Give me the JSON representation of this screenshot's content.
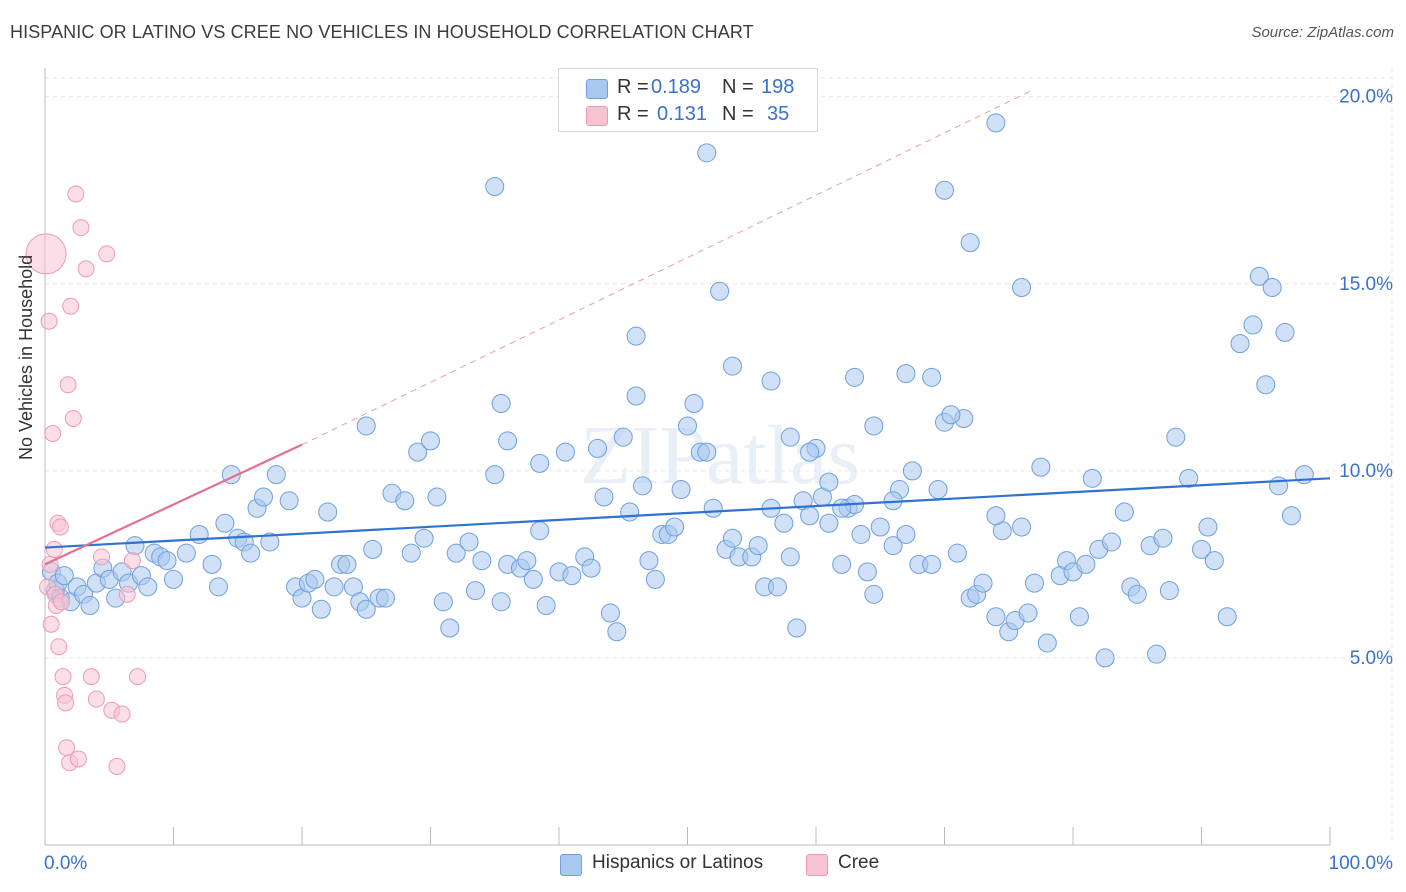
{
  "header": {
    "title": "HISPANIC OR LATINO VS CREE NO VEHICLES IN HOUSEHOLD CORRELATION CHART",
    "source": "Source: ZipAtlas.com"
  },
  "legend_top": [
    {
      "r_label": "R =",
      "r_value": "0.189",
      "n_label": "N =",
      "n_value": "198"
    },
    {
      "r_label": "R =",
      "r_value": "0.131",
      "n_label": "N =",
      "n_value": "35"
    }
  ],
  "legend_bottom": [
    {
      "label": "Hispanics or Latinos"
    },
    {
      "label": "Cree"
    }
  ],
  "colors": {
    "blue_fill": "#a9c8f0",
    "blue_stroke": "#6f9fdc",
    "blue_line": "#2f72cf",
    "pink_fill": "#f7c3d3",
    "pink_stroke": "#ee9ab3",
    "pink_line": "#e2708f",
    "tick_label": "#3a72c9",
    "grid": "#e6e6e6"
  },
  "chart_data": {
    "type": "scatter",
    "title": "HISPANIC OR LATINO VS CREE NO VEHICLES IN HOUSEHOLD CORRELATION CHART",
    "xlabel": "",
    "ylabel": "No Vehicles in Household",
    "xlim": [
      0,
      100
    ],
    "ylim": [
      0,
      20.5
    ],
    "x_tick_labels": [
      {
        "value": 0,
        "label": "0.0%"
      },
      {
        "value": 100,
        "label": "100.0%"
      }
    ],
    "y_tick_labels": [
      {
        "value": 5,
        "label": "5.0%"
      },
      {
        "value": 10,
        "label": "10.0%"
      },
      {
        "value": 15,
        "label": "15.0%"
      },
      {
        "value": 20,
        "label": "20.0%"
      }
    ],
    "grid": true,
    "watermark": "ZIPatlas",
    "series": [
      {
        "name": "Hispanics or Latinos",
        "color": "#a9c8f0",
        "trend": {
          "x": [
            0,
            100
          ],
          "y": [
            7.95,
            9.8
          ]
        },
        "points": [
          [
            0.5,
            7.3
          ],
          [
            0.8,
            6.8
          ],
          [
            1.0,
            7.0
          ],
          [
            1.2,
            6.6
          ],
          [
            1.5,
            7.2
          ],
          [
            2.0,
            6.5
          ],
          [
            2.5,
            6.9
          ],
          [
            3.0,
            6.7
          ],
          [
            3.5,
            6.4
          ],
          [
            4.0,
            7.0
          ],
          [
            4.5,
            7.4
          ],
          [
            5.0,
            7.1
          ],
          [
            5.5,
            6.6
          ],
          [
            6.0,
            7.3
          ],
          [
            6.5,
            7.0
          ],
          [
            7.0,
            8.0
          ],
          [
            7.5,
            7.2
          ],
          [
            8.0,
            6.9
          ],
          [
            8.5,
            7.8
          ],
          [
            9.0,
            7.7
          ],
          [
            9.5,
            7.6
          ],
          [
            10.0,
            7.1
          ],
          [
            11.0,
            7.8
          ],
          [
            12.0,
            8.3
          ],
          [
            13.0,
            7.5
          ],
          [
            13.5,
            6.9
          ],
          [
            14.0,
            8.6
          ],
          [
            14.5,
            9.9
          ],
          [
            15.0,
            8.2
          ],
          [
            15.5,
            8.1
          ],
          [
            16.0,
            7.8
          ],
          [
            16.5,
            9.0
          ],
          [
            17.0,
            9.3
          ],
          [
            17.5,
            8.1
          ],
          [
            18.0,
            9.9
          ],
          [
            19.0,
            9.2
          ],
          [
            19.5,
            6.9
          ],
          [
            20.0,
            6.6
          ],
          [
            20.5,
            7.0
          ],
          [
            21.0,
            7.1
          ],
          [
            21.5,
            6.3
          ],
          [
            22.0,
            8.9
          ],
          [
            22.5,
            6.9
          ],
          [
            23.0,
            7.5
          ],
          [
            23.5,
            7.5
          ],
          [
            24.0,
            6.9
          ],
          [
            24.5,
            6.5
          ],
          [
            25.0,
            6.3
          ],
          [
            25.5,
            7.9
          ],
          [
            26.0,
            6.6
          ],
          [
            26.5,
            6.6
          ],
          [
            27.0,
            9.4
          ],
          [
            28.0,
            9.2
          ],
          [
            28.5,
            7.8
          ],
          [
            29.0,
            10.5
          ],
          [
            29.5,
            8.2
          ],
          [
            30.0,
            10.8
          ],
          [
            30.5,
            9.3
          ],
          [
            31.0,
            6.5
          ],
          [
            31.5,
            5.8
          ],
          [
            32.0,
            7.8
          ],
          [
            33.0,
            8.1
          ],
          [
            33.5,
            6.8
          ],
          [
            34.0,
            7.6
          ],
          [
            35.0,
            9.9
          ],
          [
            35.5,
            6.5
          ],
          [
            36.0,
            7.5
          ],
          [
            37.0,
            7.4
          ],
          [
            37.5,
            7.6
          ],
          [
            38.0,
            7.1
          ],
          [
            38.5,
            8.4
          ],
          [
            39.0,
            6.4
          ],
          [
            40.0,
            7.3
          ],
          [
            40.5,
            10.5
          ],
          [
            41.0,
            7.2
          ],
          [
            42.0,
            7.7
          ],
          [
            42.5,
            7.4
          ],
          [
            43.0,
            10.6
          ],
          [
            43.5,
            9.3
          ],
          [
            44.0,
            6.2
          ],
          [
            44.5,
            5.7
          ],
          [
            45.0,
            10.9
          ],
          [
            45.5,
            8.9
          ],
          [
            46.0,
            12.0
          ],
          [
            46.5,
            9.6
          ],
          [
            47.0,
            7.6
          ],
          [
            47.5,
            7.1
          ],
          [
            48.0,
            8.3
          ],
          [
            48.5,
            8.3
          ],
          [
            49.0,
            8.5
          ],
          [
            49.5,
            9.5
          ],
          [
            50.0,
            11.2
          ],
          [
            50.5,
            11.8
          ],
          [
            51.0,
            10.5
          ],
          [
            51.5,
            10.5
          ],
          [
            52.0,
            9.0
          ],
          [
            53.0,
            7.9
          ],
          [
            53.5,
            8.2
          ],
          [
            54.0,
            7.7
          ],
          [
            55.0,
            7.7
          ],
          [
            55.5,
            8.0
          ],
          [
            56.0,
            6.9
          ],
          [
            56.5,
            9.0
          ],
          [
            57.0,
            6.9
          ],
          [
            57.5,
            8.6
          ],
          [
            58.0,
            7.7
          ],
          [
            58.5,
            5.8
          ],
          [
            59.0,
            9.2
          ],
          [
            59.5,
            8.8
          ],
          [
            60.0,
            10.6
          ],
          [
            60.5,
            9.3
          ],
          [
            61.0,
            8.6
          ],
          [
            62.0,
            7.5
          ],
          [
            62.5,
            9.0
          ],
          [
            63.0,
            9.1
          ],
          [
            63.5,
            8.3
          ],
          [
            64.0,
            7.3
          ],
          [
            64.5,
            6.7
          ],
          [
            65.0,
            8.5
          ],
          [
            66.0,
            8.0
          ],
          [
            66.5,
            9.5
          ],
          [
            67.0,
            8.3
          ],
          [
            67.5,
            10.0
          ],
          [
            68.0,
            7.5
          ],
          [
            69.0,
            7.5
          ],
          [
            69.5,
            9.5
          ],
          [
            70.0,
            11.3
          ],
          [
            71.0,
            7.8
          ],
          [
            71.5,
            11.4
          ],
          [
            72.0,
            6.6
          ],
          [
            72.5,
            6.7
          ],
          [
            73.0,
            7.0
          ],
          [
            74.0,
            6.1
          ],
          [
            74.5,
            8.4
          ],
          [
            75.0,
            5.7
          ],
          [
            75.5,
            6.0
          ],
          [
            76.0,
            8.5
          ],
          [
            76.5,
            6.2
          ],
          [
            77.0,
            7.0
          ],
          [
            77.5,
            10.1
          ],
          [
            78.0,
            5.4
          ],
          [
            79.0,
            7.2
          ],
          [
            79.5,
            7.6
          ],
          [
            80.0,
            7.3
          ],
          [
            80.5,
            6.1
          ],
          [
            81.0,
            7.5
          ],
          [
            81.5,
            9.8
          ],
          [
            82.0,
            7.9
          ],
          [
            82.5,
            5.0
          ],
          [
            83.0,
            8.1
          ],
          [
            84.0,
            8.9
          ],
          [
            84.5,
            6.9
          ],
          [
            85.0,
            6.7
          ],
          [
            86.0,
            8.0
          ],
          [
            86.5,
            5.1
          ],
          [
            87.0,
            8.2
          ],
          [
            87.5,
            6.8
          ],
          [
            88.0,
            10.9
          ],
          [
            89.0,
            9.8
          ],
          [
            90.0,
            7.9
          ],
          [
            90.5,
            8.5
          ],
          [
            91.0,
            7.6
          ],
          [
            92.0,
            6.1
          ],
          [
            93.0,
            13.4
          ],
          [
            94.0,
            13.9
          ],
          [
            94.5,
            15.2
          ],
          [
            95.0,
            12.3
          ],
          [
            95.5,
            14.9
          ],
          [
            96.0,
            9.6
          ],
          [
            96.5,
            13.7
          ],
          [
            97.0,
            8.8
          ],
          [
            98.0,
            9.9
          ],
          [
            25.0,
            11.2
          ],
          [
            35.5,
            11.8
          ],
          [
            46.0,
            13.6
          ],
          [
            51.5,
            18.5
          ],
          [
            52.5,
            14.8
          ],
          [
            53.5,
            12.8
          ],
          [
            56.5,
            12.4
          ],
          [
            58.0,
            10.9
          ],
          [
            59.5,
            10.5
          ],
          [
            61.0,
            9.7
          ],
          [
            62.0,
            9.0
          ],
          [
            63.0,
            12.5
          ],
          [
            64.5,
            11.2
          ],
          [
            66.0,
            9.2
          ],
          [
            67.0,
            12.6
          ],
          [
            69.0,
            12.5
          ],
          [
            70.5,
            11.5
          ],
          [
            72.0,
            16.1
          ],
          [
            74.0,
            8.8
          ],
          [
            76.0,
            14.9
          ],
          [
            35.0,
            17.6
          ],
          [
            38.5,
            10.2
          ],
          [
            36.0,
            10.8
          ],
          [
            48.5,
            19.6
          ],
          [
            74.0,
            19.3
          ],
          [
            70.0,
            17.5
          ]
        ]
      },
      {
        "name": "Cree",
        "color": "#f7c3d3",
        "trend": {
          "x": [
            0,
            20
          ],
          "y": [
            7.5,
            10.7
          ]
        },
        "trend_extended": {
          "x": [
            20,
            77
          ],
          "y": [
            10.7,
            20.2
          ]
        },
        "points": [
          [
            0.2,
            15.8
          ],
          [
            0.5,
            6.9
          ],
          [
            0.8,
            14.0
          ],
          [
            1.0,
            7.5
          ],
          [
            1.2,
            5.9
          ],
          [
            1.5,
            11.0
          ],
          [
            1.8,
            7.9
          ],
          [
            2.0,
            6.7
          ],
          [
            2.2,
            6.4
          ],
          [
            2.5,
            8.6
          ],
          [
            2.7,
            5.3
          ],
          [
            3.0,
            8.5
          ],
          [
            3.2,
            6.5
          ],
          [
            3.5,
            4.5
          ],
          [
            3.8,
            4.0
          ],
          [
            4.0,
            3.8
          ],
          [
            4.2,
            2.6
          ],
          [
            4.5,
            12.3
          ],
          [
            4.8,
            2.2
          ],
          [
            5.0,
            14.4
          ],
          [
            5.5,
            11.4
          ],
          [
            6.0,
            17.4
          ],
          [
            6.5,
            2.3
          ],
          [
            7.0,
            16.5
          ],
          [
            8.0,
            15.4
          ],
          [
            9.0,
            4.5
          ],
          [
            10.0,
            3.9
          ],
          [
            11.0,
            7.7
          ],
          [
            12.0,
            15.8
          ],
          [
            13.0,
            3.6
          ],
          [
            14.0,
            2.1
          ],
          [
            15.0,
            3.5
          ],
          [
            16.0,
            6.7
          ],
          [
            17.0,
            7.6
          ],
          [
            18.0,
            4.5
          ]
        ]
      }
    ]
  }
}
